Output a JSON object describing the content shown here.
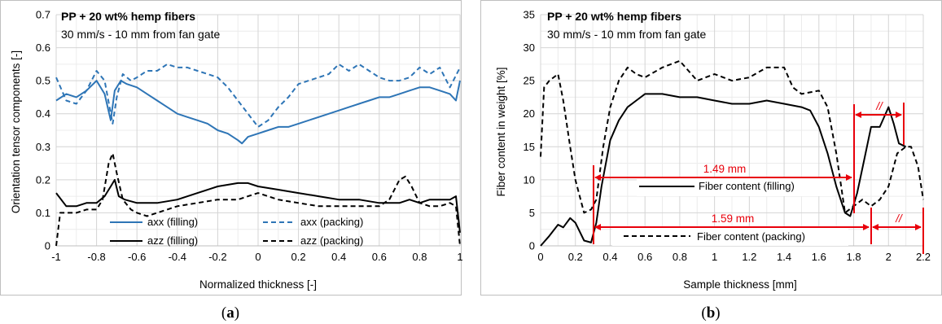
{
  "chart_data": [
    {
      "type": "line",
      "panel_label": "a",
      "title": "PP + 20 wt% hemp fibers",
      "subtitle": "30 mm/s - 10 mm from fan gate",
      "xlabel": "Normalized thickness [-]",
      "ylabel": "Orientation tensor components [-]",
      "xlim": [
        -1,
        1
      ],
      "ylim": [
        0,
        0.7
      ],
      "xticks": [
        "-1",
        "-0.8",
        "-0.6",
        "-0.4",
        "-0.2",
        "0",
        "0.2",
        "0.4",
        "0.6",
        "0.8",
        "1"
      ],
      "yticks": [
        "0",
        "0.1",
        "0.2",
        "0.3",
        "0.4",
        "0.5",
        "0.6",
        "0.7"
      ],
      "grid": true,
      "legend_position": "bottom-center",
      "series": [
        {
          "name": "axx (filling)",
          "color": "#2e75b6",
          "dash": "solid",
          "x": [
            -1,
            -0.95,
            -0.9,
            -0.85,
            -0.8,
            -0.76,
            -0.73,
            -0.71,
            -0.68,
            -0.65,
            -0.6,
            -0.55,
            -0.5,
            -0.45,
            -0.4,
            -0.35,
            -0.3,
            -0.25,
            -0.2,
            -0.15,
            -0.1,
            -0.08,
            -0.05,
            0,
            0.05,
            0.1,
            0.15,
            0.2,
            0.3,
            0.4,
            0.45,
            0.5,
            0.55,
            0.6,
            0.65,
            0.7,
            0.75,
            0.8,
            0.85,
            0.9,
            0.95,
            0.98,
            1
          ],
          "y": [
            0.44,
            0.46,
            0.45,
            0.47,
            0.5,
            0.46,
            0.38,
            0.47,
            0.5,
            0.49,
            0.48,
            0.46,
            0.44,
            0.42,
            0.4,
            0.39,
            0.38,
            0.37,
            0.35,
            0.34,
            0.32,
            0.31,
            0.33,
            0.34,
            0.35,
            0.36,
            0.36,
            0.37,
            0.39,
            0.41,
            0.42,
            0.43,
            0.44,
            0.45,
            0.45,
            0.46,
            0.47,
            0.48,
            0.48,
            0.47,
            0.46,
            0.44,
            0.5
          ]
        },
        {
          "name": "axx (packing)",
          "color": "#2e75b6",
          "dash": "dashed",
          "x": [
            -1,
            -0.95,
            -0.9,
            -0.85,
            -0.8,
            -0.76,
            -0.72,
            -0.7,
            -0.67,
            -0.63,
            -0.6,
            -0.55,
            -0.5,
            -0.45,
            -0.4,
            -0.35,
            -0.3,
            -0.25,
            -0.2,
            -0.15,
            -0.1,
            -0.05,
            0,
            0.05,
            0.1,
            0.15,
            0.2,
            0.25,
            0.3,
            0.35,
            0.4,
            0.45,
            0.5,
            0.55,
            0.6,
            0.65,
            0.7,
            0.75,
            0.8,
            0.85,
            0.9,
            0.95,
            1
          ],
          "y": [
            0.51,
            0.44,
            0.43,
            0.47,
            0.53,
            0.5,
            0.37,
            0.45,
            0.52,
            0.5,
            0.51,
            0.53,
            0.53,
            0.55,
            0.54,
            0.54,
            0.53,
            0.52,
            0.51,
            0.48,
            0.44,
            0.4,
            0.36,
            0.38,
            0.42,
            0.45,
            0.49,
            0.5,
            0.51,
            0.52,
            0.55,
            0.53,
            0.55,
            0.53,
            0.51,
            0.5,
            0.5,
            0.51,
            0.54,
            0.52,
            0.54,
            0.48,
            0.54
          ]
        },
        {
          "name": "azz (filling)",
          "color": "#000000",
          "dash": "solid",
          "x": [
            -1,
            -0.95,
            -0.9,
            -0.85,
            -0.8,
            -0.76,
            -0.73,
            -0.71,
            -0.69,
            -0.66,
            -0.6,
            -0.5,
            -0.4,
            -0.3,
            -0.2,
            -0.1,
            -0.05,
            0,
            0.1,
            0.2,
            0.3,
            0.4,
            0.5,
            0.6,
            0.7,
            0.75,
            0.8,
            0.85,
            0.9,
            0.95,
            0.98,
            1
          ],
          "y": [
            0.16,
            0.12,
            0.12,
            0.13,
            0.13,
            0.15,
            0.18,
            0.2,
            0.15,
            0.14,
            0.13,
            0.13,
            0.14,
            0.16,
            0.18,
            0.19,
            0.19,
            0.18,
            0.17,
            0.16,
            0.15,
            0.14,
            0.14,
            0.13,
            0.13,
            0.14,
            0.13,
            0.14,
            0.14,
            0.14,
            0.15,
            0.04
          ]
        },
        {
          "name": "azz (packing)",
          "color": "#000000",
          "dash": "dashed",
          "x": [
            -1,
            -0.98,
            -0.95,
            -0.9,
            -0.85,
            -0.8,
            -0.77,
            -0.74,
            -0.72,
            -0.7,
            -0.67,
            -0.63,
            -0.6,
            -0.55,
            -0.5,
            -0.45,
            -0.4,
            -0.3,
            -0.2,
            -0.1,
            -0.05,
            0,
            0.05,
            0.1,
            0.2,
            0.3,
            0.4,
            0.5,
            0.6,
            0.65,
            0.7,
            0.73,
            0.76,
            0.8,
            0.85,
            0.9,
            0.95,
            0.98,
            1
          ],
          "y": [
            0,
            0.1,
            0.1,
            0.1,
            0.11,
            0.11,
            0.14,
            0.25,
            0.28,
            0.22,
            0.14,
            0.11,
            0.1,
            0.09,
            0.1,
            0.11,
            0.12,
            0.13,
            0.14,
            0.14,
            0.15,
            0.16,
            0.15,
            0.14,
            0.13,
            0.12,
            0.12,
            0.12,
            0.12,
            0.14,
            0.2,
            0.21,
            0.18,
            0.13,
            0.12,
            0.12,
            0.13,
            0.12,
            0.0
          ]
        }
      ]
    },
    {
      "type": "line",
      "panel_label": "b",
      "title": "PP + 20 wt% hemp fibers",
      "subtitle": "30 mm/s - 10 mm from fan gate",
      "xlabel": "Sample thickness [mm]",
      "ylabel": "Fiber content in weight [%]",
      "xlim": [
        0,
        2.2
      ],
      "ylim": [
        0,
        35
      ],
      "xticks": [
        "0",
        "0.2",
        "0.4",
        "0.6",
        "0.8",
        "1",
        "1.2",
        "1.4",
        "1.6",
        "1.8",
        "2",
        "2.2"
      ],
      "yticks": [
        "0",
        "5",
        "10",
        "15",
        "20",
        "25",
        "30",
        "35"
      ],
      "grid": true,
      "series": [
        {
          "name": "Fiber content (filling)",
          "color": "#000000",
          "dash": "solid",
          "x": [
            0,
            0.05,
            0.1,
            0.13,
            0.17,
            0.2,
            0.25,
            0.29,
            0.32,
            0.35,
            0.4,
            0.45,
            0.5,
            0.55,
            0.6,
            0.7,
            0.8,
            0.9,
            1.0,
            1.1,
            1.2,
            1.3,
            1.4,
            1.5,
            1.55,
            1.6,
            1.65,
            1.7,
            1.75,
            1.78,
            1.82,
            1.86,
            1.9,
            1.95,
            2.0,
            2.03,
            2.06,
            2.1
          ],
          "y": [
            0,
            1.5,
            3.2,
            2.8,
            4.2,
            3.5,
            0.8,
            0.5,
            3.5,
            9,
            16,
            19,
            21,
            22,
            23,
            23,
            22.5,
            22.5,
            22,
            21.5,
            21.5,
            22,
            21.5,
            21,
            20.5,
            18,
            14,
            9,
            5,
            4.5,
            8,
            13,
            18,
            18,
            21,
            18.5,
            15.5,
            15
          ]
        },
        {
          "name": "Fiber content (packing)",
          "color": "#000000",
          "dash": "dashed",
          "x": [
            0,
            0.02,
            0.05,
            0.1,
            0.13,
            0.17,
            0.2,
            0.25,
            0.29,
            0.32,
            0.36,
            0.4,
            0.45,
            0.5,
            0.55,
            0.6,
            0.7,
            0.8,
            0.9,
            1.0,
            1.1,
            1.2,
            1.3,
            1.4,
            1.45,
            1.5,
            1.6,
            1.65,
            1.7,
            1.75,
            1.8,
            1.85,
            1.9,
            1.95,
            2.0,
            2.05,
            2.1,
            2.13,
            2.17,
            2.2
          ],
          "y": [
            13.5,
            24,
            25,
            26,
            22,
            15,
            10,
            5,
            5.5,
            7,
            15,
            21,
            25,
            27,
            26,
            25.5,
            27,
            28,
            25,
            26,
            25,
            25.5,
            27,
            27,
            24,
            23,
            23.5,
            21,
            14,
            5,
            6,
            7,
            6,
            7,
            9,
            14,
            15,
            15,
            12,
            7
          ]
        }
      ],
      "annotations": {
        "dim1_label": "1.49 mm",
        "dim2_label": "1.59 mm",
        "break_mark_top": "//",
        "break_mark_bottom": "//",
        "color": "#e8000b"
      }
    }
  ]
}
